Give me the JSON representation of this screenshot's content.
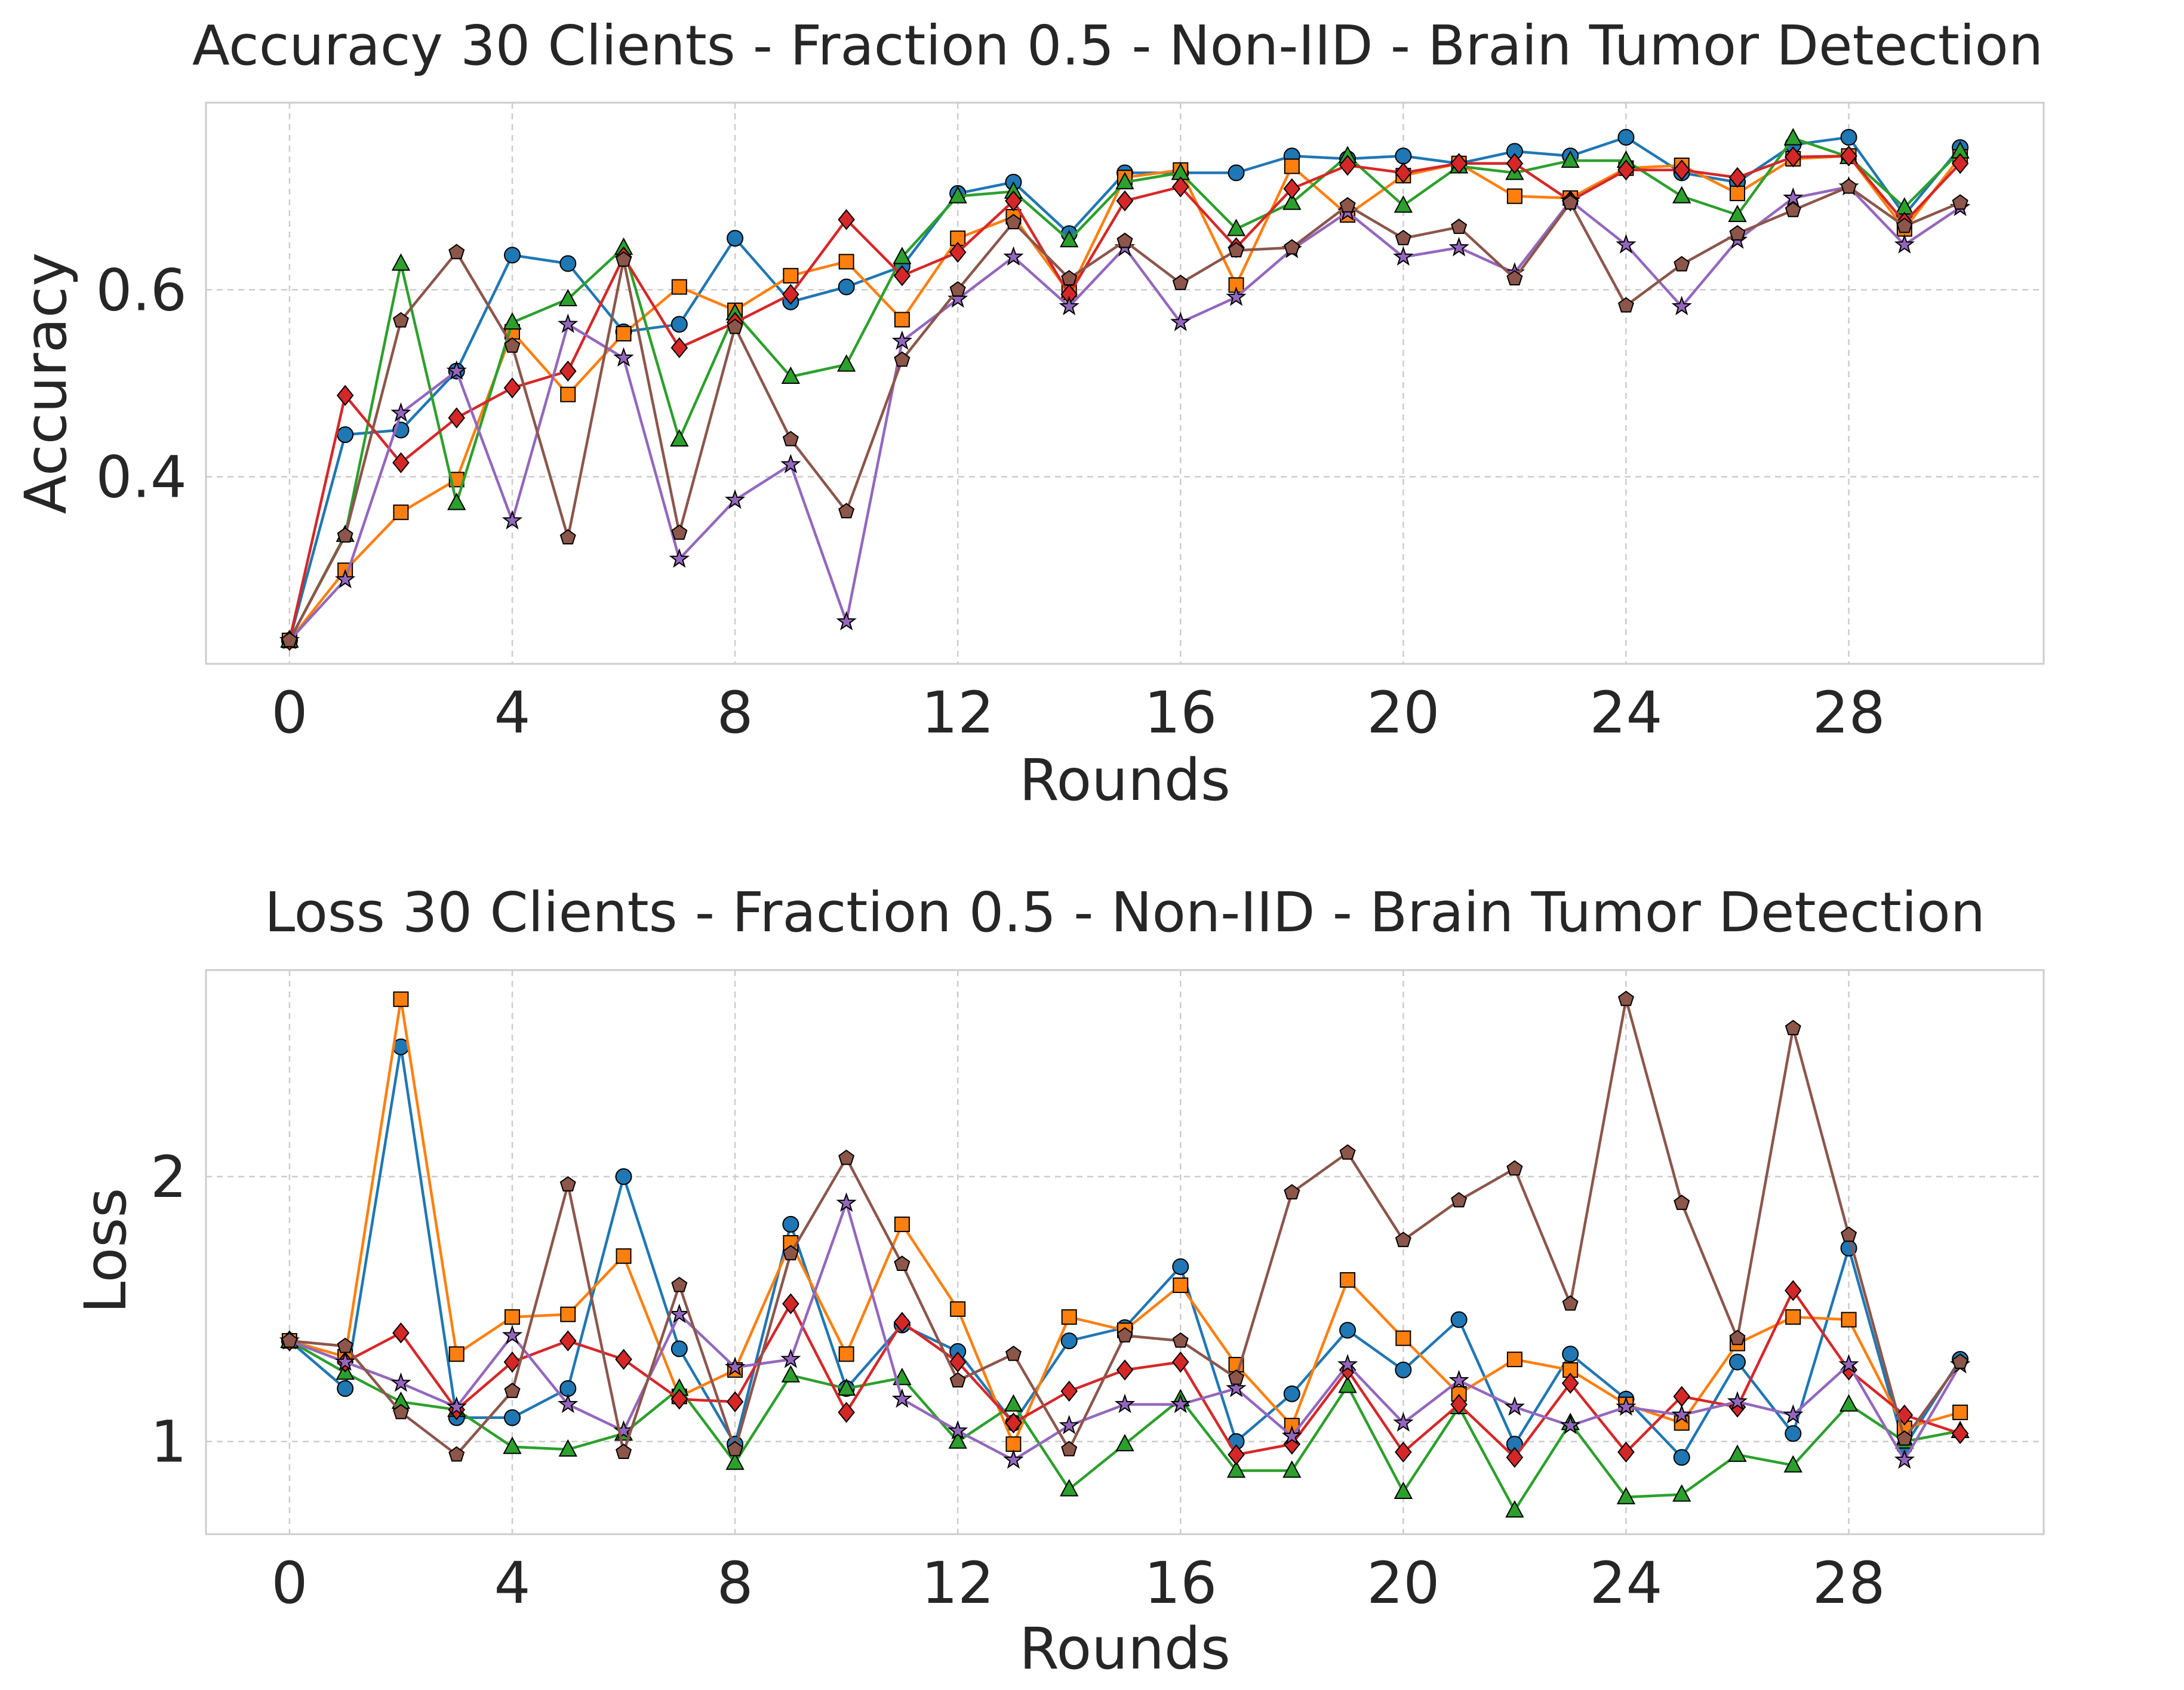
{
  "chart_data": [
    {
      "type": "line",
      "title": "Accuracy 30 Clients - Fraction 0.5 - Non-IID - Brain Tumor Detection",
      "xlabel": "Rounds",
      "ylabel": "Accuracy",
      "xlim": [
        -1.5,
        31.5
      ],
      "ylim": [
        0.2,
        0.8
      ],
      "xticks": [
        0,
        4,
        8,
        12,
        16,
        20,
        24,
        28
      ],
      "yticks": [
        0.4,
        0.6
      ],
      "ytick_labels": [
        "0.4",
        "0.6"
      ],
      "grid": true,
      "x": [
        0,
        1,
        2,
        3,
        4,
        5,
        6,
        7,
        8,
        9,
        10,
        11,
        12,
        13,
        14,
        15,
        16,
        17,
        18,
        19,
        20,
        21,
        22,
        23,
        24,
        25,
        26,
        27,
        28,
        29,
        30
      ],
      "series": [
        {
          "color": "#1f77b4",
          "marker": "circle",
          "values": [
            0.225,
            0.445,
            0.45,
            0.513,
            0.637,
            0.628,
            0.555,
            0.563,
            0.655,
            0.587,
            0.603,
            0.625,
            0.703,
            0.715,
            0.66,
            0.725,
            0.725,
            0.725,
            0.743,
            0.74,
            0.743,
            0.735,
            0.748,
            0.743,
            0.763,
            0.725,
            0.715,
            0.755,
            0.763,
            0.68,
            0.752
          ]
        },
        {
          "color": "#ff7f0e",
          "marker": "square",
          "values": [
            0.225,
            0.3,
            0.362,
            0.397,
            0.555,
            0.488,
            0.553,
            0.603,
            0.578,
            0.615,
            0.63,
            0.568,
            0.655,
            0.678,
            0.597,
            0.72,
            0.728,
            0.605,
            0.732,
            0.68,
            0.722,
            0.735,
            0.7,
            0.698,
            0.73,
            0.733,
            0.703,
            0.74,
            0.743,
            0.665,
            0.742
          ]
        },
        {
          "color": "#2ca02c",
          "marker": "triangle",
          "values": [
            0.225,
            0.338,
            0.628,
            0.372,
            0.565,
            0.59,
            0.645,
            0.44,
            0.575,
            0.507,
            0.52,
            0.635,
            0.7,
            0.705,
            0.653,
            0.715,
            0.725,
            0.665,
            0.693,
            0.743,
            0.69,
            0.732,
            0.725,
            0.738,
            0.738,
            0.7,
            0.68,
            0.762,
            0.742,
            0.688,
            0.748
          ]
        },
        {
          "color": "#d62728",
          "marker": "diamond",
          "values": [
            0.225,
            0.487,
            0.415,
            0.463,
            0.495,
            0.513,
            0.635,
            0.538,
            0.565,
            0.595,
            0.675,
            0.615,
            0.64,
            0.695,
            0.595,
            0.695,
            0.71,
            0.645,
            0.708,
            0.733,
            0.725,
            0.735,
            0.735,
            0.695,
            0.728,
            0.728,
            0.72,
            0.742,
            0.743,
            0.672,
            0.735
          ]
        },
        {
          "color": "#9467bd",
          "marker": "star",
          "values": [
            0.225,
            0.29,
            0.468,
            0.513,
            0.353,
            0.563,
            0.527,
            0.312,
            0.375,
            0.413,
            0.245,
            0.545,
            0.59,
            0.635,
            0.582,
            0.645,
            0.565,
            0.592,
            0.643,
            0.683,
            0.635,
            0.645,
            0.618,
            0.695,
            0.648,
            0.582,
            0.653,
            0.698,
            0.71,
            0.648,
            0.688
          ]
        },
        {
          "color": "#8c564b",
          "marker": "pentagon",
          "values": [
            0.225,
            0.337,
            0.567,
            0.64,
            0.54,
            0.335,
            0.632,
            0.34,
            0.56,
            0.44,
            0.363,
            0.525,
            0.6,
            0.672,
            0.612,
            0.652,
            0.607,
            0.642,
            0.645,
            0.69,
            0.655,
            0.667,
            0.612,
            0.693,
            0.583,
            0.627,
            0.66,
            0.685,
            0.71,
            0.668,
            0.693
          ]
        }
      ]
    },
    {
      "type": "line",
      "title": "Loss 30 Clients - Fraction 0.5 - Non-IID - Brain Tumor Detection",
      "xlabel": "Rounds",
      "ylabel": "Loss",
      "xlim": [
        -1.5,
        31.5
      ],
      "ylim": [
        0.65,
        2.78
      ],
      "xticks": [
        0,
        4,
        8,
        12,
        16,
        20,
        24,
        28
      ],
      "yticks": [
        1,
        2
      ],
      "ytick_labels": [
        "1",
        "2"
      ],
      "grid": true,
      "x": [
        0,
        1,
        2,
        3,
        4,
        5,
        6,
        7,
        8,
        9,
        10,
        11,
        12,
        13,
        14,
        15,
        16,
        17,
        18,
        19,
        20,
        21,
        22,
        23,
        24,
        25,
        26,
        27,
        28,
        29,
        30
      ],
      "series": [
        {
          "color": "#1f77b4",
          "marker": "circle",
          "values": [
            1.38,
            1.2,
            2.49,
            1.09,
            1.09,
            1.2,
            2.0,
            1.35,
            0.99,
            1.82,
            1.2,
            1.44,
            1.34,
            1.07,
            1.38,
            1.43,
            1.66,
            1.0,
            1.18,
            1.42,
            1.27,
            1.46,
            0.99,
            1.33,
            1.16,
            0.94,
            1.3,
            1.03,
            1.73,
            0.98,
            1.31
          ]
        },
        {
          "color": "#ff7f0e",
          "marker": "square",
          "values": [
            1.38,
            1.32,
            2.67,
            1.33,
            1.47,
            1.48,
            1.7,
            1.17,
            1.27,
            1.75,
            1.33,
            1.82,
            1.5,
            0.99,
            1.47,
            1.42,
            1.59,
            1.29,
            1.06,
            1.61,
            1.39,
            1.18,
            1.31,
            1.27,
            1.14,
            1.07,
            1.37,
            1.47,
            1.46,
            1.05,
            1.11
          ]
        },
        {
          "color": "#2ca02c",
          "marker": "triangle",
          "values": [
            1.38,
            1.26,
            1.15,
            1.12,
            0.98,
            0.97,
            1.03,
            1.2,
            0.92,
            1.25,
            1.2,
            1.24,
            1.0,
            1.14,
            0.82,
            0.99,
            1.16,
            0.89,
            0.89,
            1.21,
            0.81,
            1.13,
            0.74,
            1.07,
            0.79,
            0.8,
            0.95,
            0.91,
            1.14,
            1.0,
            1.04
          ]
        },
        {
          "color": "#d62728",
          "marker": "diamond",
          "values": [
            1.38,
            1.3,
            1.41,
            1.12,
            1.3,
            1.38,
            1.31,
            1.16,
            1.15,
            1.52,
            1.11,
            1.45,
            1.3,
            1.07,
            1.19,
            1.27,
            1.3,
            0.95,
            0.99,
            1.27,
            0.96,
            1.14,
            0.94,
            1.22,
            0.96,
            1.17,
            1.13,
            1.57,
            1.27,
            1.1,
            1.03
          ]
        },
        {
          "color": "#9467bd",
          "marker": "star",
          "values": [
            1.38,
            1.3,
            1.22,
            1.13,
            1.4,
            1.14,
            1.04,
            1.48,
            1.28,
            1.31,
            1.9,
            1.16,
            1.04,
            0.93,
            1.06,
            1.14,
            1.14,
            1.2,
            1.02,
            1.29,
            1.07,
            1.23,
            1.13,
            1.06,
            1.13,
            1.1,
            1.15,
            1.1,
            1.29,
            0.93,
            1.29
          ]
        },
        {
          "color": "#8c564b",
          "marker": "pentagon",
          "values": [
            1.38,
            1.36,
            1.11,
            0.95,
            1.19,
            1.97,
            0.96,
            1.59,
            0.97,
            1.71,
            2.07,
            1.67,
            1.23,
            1.33,
            0.97,
            1.4,
            1.38,
            1.24,
            1.94,
            2.09,
            1.76,
            1.91,
            2.03,
            1.52,
            2.67,
            1.9,
            1.39,
            2.56,
            1.78,
            1.01,
            1.3
          ]
        }
      ]
    }
  ]
}
